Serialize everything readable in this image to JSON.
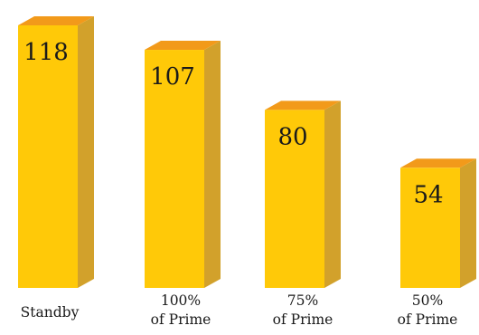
{
  "chart_data": {
    "type": "bar",
    "title": "",
    "xlabel": "",
    "ylabel": "",
    "categories": [
      [
        "Standby"
      ],
      [
        "100%",
        "of Prime"
      ],
      [
        "75%",
        "of Prime"
      ],
      [
        "50%",
        "of Prime"
      ]
    ],
    "values": [
      118,
      107,
      80,
      54
    ],
    "ylim": [
      0,
      125
    ],
    "grid": false,
    "legend": "none",
    "colors": {
      "front": "#FFC908",
      "side": "#D2A12B",
      "top": "#F29A1A",
      "text": "#1A1A1A"
    }
  }
}
